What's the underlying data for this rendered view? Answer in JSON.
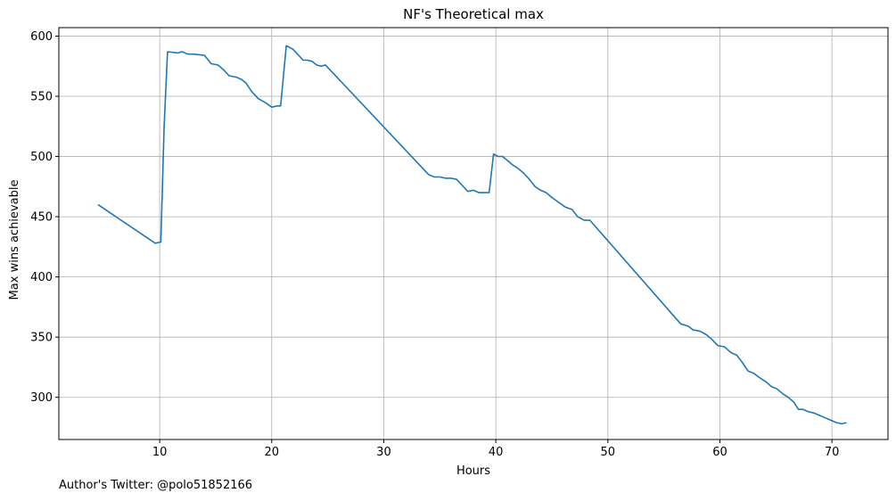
{
  "footer": {
    "credit": "Author's Twitter: @polo51852166"
  },
  "chart_data": {
    "type": "line",
    "title": "NF's Theoretical max",
    "xlabel": "Hours",
    "ylabel": "Max wins achievable",
    "xlim": [
      1,
      75
    ],
    "ylim": [
      265,
      607
    ],
    "grid": true,
    "xticks": [
      10,
      20,
      30,
      40,
      50,
      60,
      70
    ],
    "yticks": [
      300,
      350,
      400,
      450,
      500,
      550,
      600
    ],
    "line_color": "#1f77b4",
    "series": [
      {
        "x": [
          4.5,
          9.6,
          10.1,
          10.4,
          10.7,
          11.6,
          12.0,
          12.5,
          13.0,
          14.0,
          14.6,
          15.2,
          15.7,
          16.2,
          16.8,
          17.3,
          17.7,
          18.2,
          18.8,
          19.4,
          20.0,
          20.5,
          20.8,
          21.3,
          21.5,
          21.9,
          22.3,
          22.8,
          23.2,
          23.6,
          24.0,
          24.4,
          24.8,
          25.2,
          34.0,
          34.5,
          35.0,
          35.5,
          36.0,
          36.5,
          37.0,
          37.5,
          38.0,
          38.5,
          38.9,
          39.2,
          39.4,
          39.8,
          40.2,
          40.6,
          41.0,
          41.5,
          42.0,
          42.5,
          43.0,
          43.5,
          44.0,
          44.5,
          45.0,
          45.6,
          46.2,
          46.8,
          47.3,
          47.9,
          48.4,
          56.5,
          57.2,
          57.6,
          58.2,
          58.8,
          59.3,
          59.8,
          60.4,
          61.0,
          61.5,
          62.0,
          62.5,
          63.0,
          63.6,
          64.1,
          64.6,
          65.1,
          65.6,
          66.1,
          66.6,
          67.0,
          67.4,
          67.9,
          68.4,
          68.9,
          69.4,
          69.9,
          70.4,
          70.9,
          71.3
        ],
        "values": [
          460,
          428,
          429,
          525,
          587,
          586,
          587,
          585,
          585,
          584,
          577,
          576,
          572,
          567,
          566,
          564,
          561,
          554,
          548,
          545,
          541,
          542,
          542,
          592,
          591,
          589,
          585,
          580,
          580,
          579,
          576,
          575,
          576,
          572,
          485,
          483,
          483,
          482,
          482,
          481,
          476,
          471,
          472,
          470,
          470,
          470,
          470,
          502,
          500,
          500,
          497,
          493,
          490,
          486,
          481,
          475,
          472,
          470,
          466,
          462,
          458,
          456,
          450,
          447,
          447,
          361,
          359,
          356,
          355,
          352,
          348,
          343,
          342,
          337,
          335,
          329,
          322,
          320,
          316,
          313,
          309,
          307,
          303,
          300,
          296,
          290,
          290,
          288,
          287,
          285,
          283,
          281,
          279,
          278,
          279
        ]
      }
    ]
  }
}
